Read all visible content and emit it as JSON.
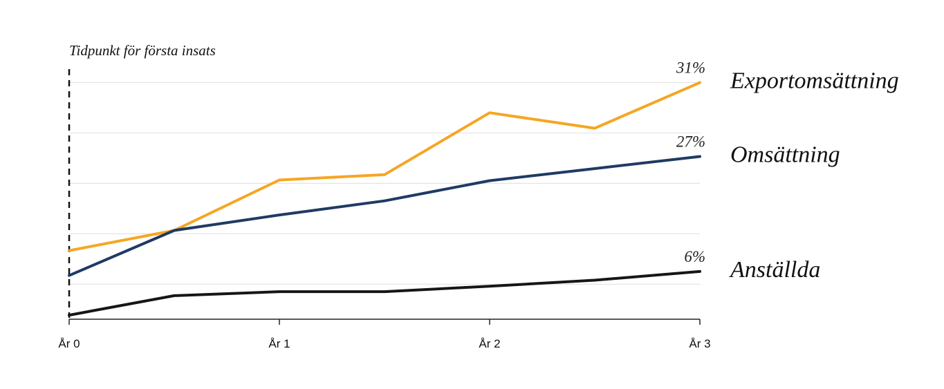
{
  "chart_data": {
    "type": "line",
    "title": "",
    "xlabel": "",
    "ylabel": "",
    "x": [
      0,
      0.5,
      1,
      1.5,
      2,
      2.5,
      3
    ],
    "x_tick_labels": [
      "År 0",
      "År 1",
      "År 2",
      "År 3"
    ],
    "ylim": [
      -2,
      35
    ],
    "y_gridlines": [
      3,
      10.5,
      18,
      25.5,
      33
    ],
    "y_tick_labels_shown": false,
    "grid": true,
    "annotation": "Tidpunkt för första insats",
    "series": [
      {
        "name": "Exportomsättning",
        "color": "#F5A623",
        "values": [
          8,
          11,
          18.5,
          19.3,
          28.5,
          26.2,
          33
        ],
        "end_label": "31%"
      },
      {
        "name": "Omsättning",
        "color": "#1F3A64",
        "values": [
          4.3,
          11,
          13.3,
          15.4,
          18.4,
          20.2,
          22
        ],
        "end_label": "27%"
      },
      {
        "name": "Anställda",
        "color": "#161616",
        "values": -1.6,
        "values_list": [
          -1.6,
          1.3,
          1.9,
          1.9,
          2.7,
          3.6,
          4.9
        ],
        "end_label": "6%"
      }
    ]
  }
}
